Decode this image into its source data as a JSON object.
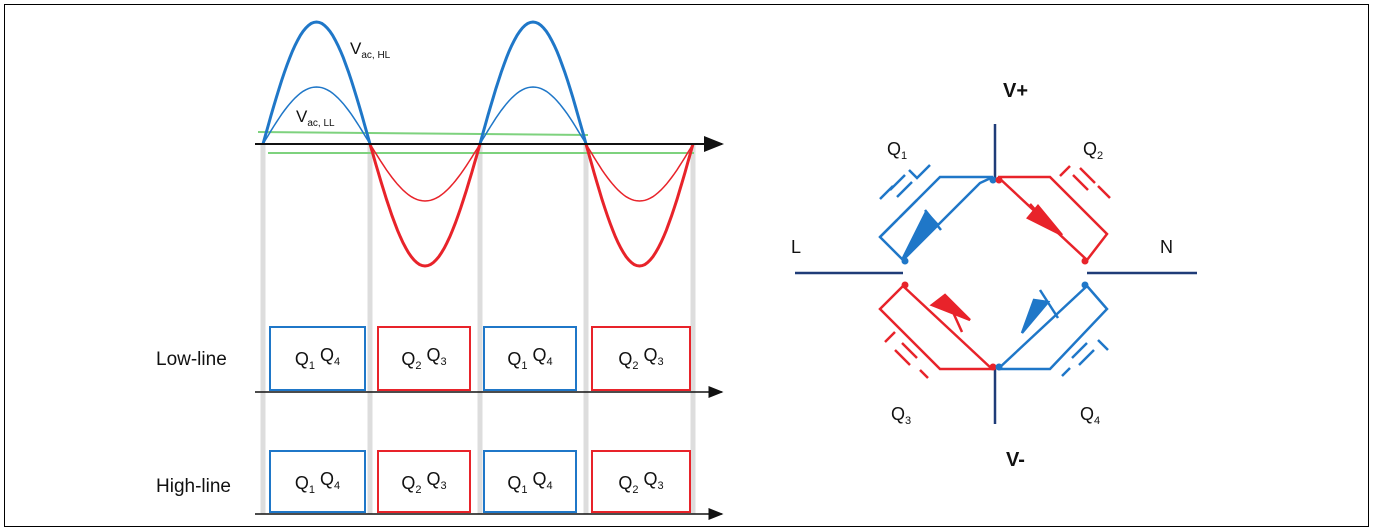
{
  "waveform": {
    "vac_hl": {
      "main": "V",
      "sub": "ac, HL"
    },
    "vac_ll": {
      "main": "V",
      "sub": "ac, LL"
    },
    "rows": [
      {
        "label": "Low-line",
        "boxes": [
          [
            "Q",
            "1",
            "Q",
            "4"
          ],
          [
            "Q",
            "2",
            "Q",
            "3"
          ],
          [
            "Q",
            "1",
            "Q",
            "4"
          ],
          [
            "Q",
            "2",
            "Q",
            "3"
          ]
        ]
      },
      {
        "label": "High-line",
        "boxes": [
          [
            "Q",
            "1",
            "Q",
            "4"
          ],
          [
            "Q",
            "2",
            "Q",
            "3"
          ],
          [
            "Q",
            "1",
            "Q",
            "4"
          ],
          [
            "Q",
            "2",
            "Q",
            "3"
          ]
        ]
      }
    ]
  },
  "bridge": {
    "v_plus": "V+",
    "v_minus": "V-",
    "l": "L",
    "n": "N",
    "q1": {
      "main": "Q",
      "sub": "1"
    },
    "q2": {
      "main": "Q",
      "sub": "2"
    },
    "q3": {
      "main": "Q",
      "sub": "3"
    },
    "q4": {
      "main": "Q",
      "sub": "4"
    }
  },
  "colors": {
    "blue": "#1f77c8",
    "red": "#e8232a",
    "green": "#7ed27e",
    "dark": "#1f3c78",
    "grey": "#c8c8c8"
  }
}
